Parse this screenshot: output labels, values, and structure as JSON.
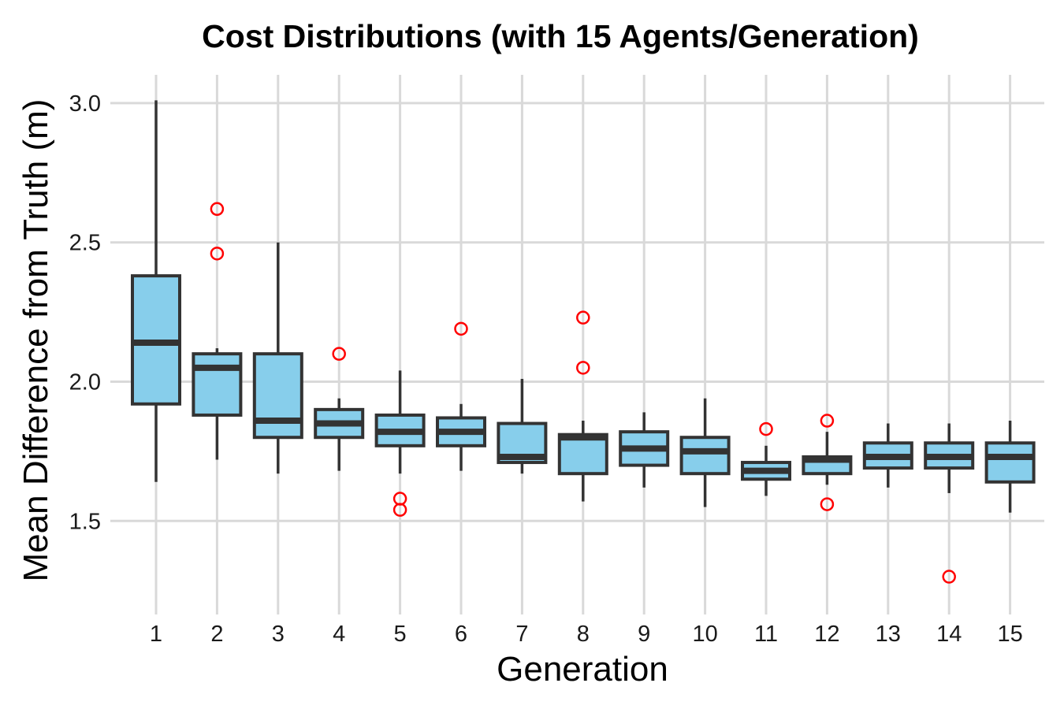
{
  "chart_data": {
    "type": "boxplot",
    "title": "Cost Distributions (with 15 Agents/Generation)",
    "xlabel": "Generation",
    "ylabel": "Mean Difference from Truth (m)",
    "ylim": [
      1.2,
      3.1
    ],
    "yticks": [
      "1.5",
      "2.0",
      "2.5",
      "3.0"
    ],
    "grid": true,
    "categories": [
      "1",
      "2",
      "3",
      "4",
      "5",
      "6",
      "7",
      "8",
      "9",
      "10",
      "11",
      "12",
      "13",
      "14",
      "15"
    ],
    "colors": {
      "box_fill": "#87ceeb",
      "box_line": "#333333",
      "outlier": "#ff0000",
      "grid": "#d9d9d9"
    },
    "boxes": [
      {
        "gen": "1",
        "low": 1.64,
        "q1": 1.92,
        "median": 2.14,
        "q3": 2.38,
        "high": 3.01,
        "outliers": []
      },
      {
        "gen": "2",
        "low": 1.72,
        "q1": 1.88,
        "median": 2.05,
        "q3": 2.1,
        "high": 2.12,
        "outliers": [
          2.62,
          2.46
        ]
      },
      {
        "gen": "3",
        "low": 1.67,
        "q1": 1.8,
        "median": 1.86,
        "q3": 2.1,
        "high": 2.5,
        "outliers": []
      },
      {
        "gen": "4",
        "low": 1.68,
        "q1": 1.8,
        "median": 1.85,
        "q3": 1.9,
        "high": 1.94,
        "outliers": [
          2.1
        ]
      },
      {
        "gen": "5",
        "low": 1.67,
        "q1": 1.77,
        "median": 1.82,
        "q3": 1.88,
        "high": 2.04,
        "outliers": [
          1.58,
          1.54
        ]
      },
      {
        "gen": "6",
        "low": 1.68,
        "q1": 1.77,
        "median": 1.82,
        "q3": 1.87,
        "high": 1.92,
        "outliers": [
          2.19
        ]
      },
      {
        "gen": "7",
        "low": 1.67,
        "q1": 1.71,
        "median": 1.73,
        "q3": 1.85,
        "high": 2.01,
        "outliers": []
      },
      {
        "gen": "8",
        "low": 1.57,
        "q1": 1.67,
        "median": 1.8,
        "q3": 1.81,
        "high": 1.86,
        "outliers": [
          2.23,
          2.05
        ]
      },
      {
        "gen": "9",
        "low": 1.62,
        "q1": 1.7,
        "median": 1.76,
        "q3": 1.82,
        "high": 1.89,
        "outliers": []
      },
      {
        "gen": "10",
        "low": 1.55,
        "q1": 1.67,
        "median": 1.75,
        "q3": 1.8,
        "high": 1.94,
        "outliers": []
      },
      {
        "gen": "11",
        "low": 1.59,
        "q1": 1.65,
        "median": 1.68,
        "q3": 1.71,
        "high": 1.77,
        "outliers": [
          1.83
        ]
      },
      {
        "gen": "12",
        "low": 1.63,
        "q1": 1.67,
        "median": 1.72,
        "q3": 1.73,
        "high": 1.82,
        "outliers": [
          1.86,
          1.56
        ]
      },
      {
        "gen": "13",
        "low": 1.62,
        "q1": 1.69,
        "median": 1.73,
        "q3": 1.78,
        "high": 1.85,
        "outliers": []
      },
      {
        "gen": "14",
        "low": 1.6,
        "q1": 1.69,
        "median": 1.73,
        "q3": 1.78,
        "high": 1.85,
        "outliers": [
          1.3
        ]
      },
      {
        "gen": "15",
        "low": 1.53,
        "q1": 1.64,
        "median": 1.73,
        "q3": 1.78,
        "high": 1.86,
        "outliers": []
      }
    ]
  }
}
